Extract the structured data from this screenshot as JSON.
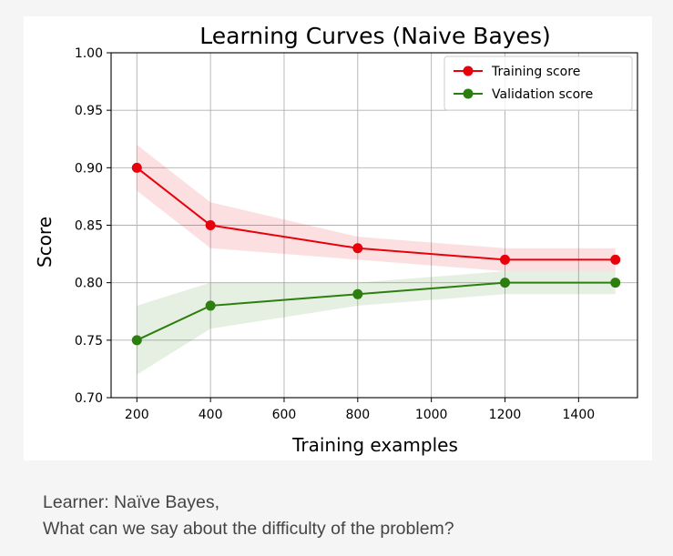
{
  "chart_data": {
    "type": "line",
    "title": "Learning Curves (Naive Bayes)",
    "xlabel": "Training examples",
    "ylabel": "Score",
    "x": [
      200,
      400,
      800,
      1200,
      1500
    ],
    "xticks": [
      200,
      400,
      600,
      800,
      1000,
      1200,
      1400
    ],
    "yticks": [
      "0.70",
      "0.75",
      "0.80",
      "0.85",
      "0.90",
      "0.95",
      "1.00"
    ],
    "xlim": [
      130,
      1560
    ],
    "ylim": [
      0.7,
      1.0
    ],
    "grid": true,
    "legend_position": "top-right",
    "series": [
      {
        "name": "Training score",
        "color": "#e8000b",
        "values": [
          0.9,
          0.85,
          0.83,
          0.82,
          0.82
        ],
        "band_lower": [
          0.88,
          0.83,
          0.82,
          0.81,
          0.81
        ],
        "band_upper": [
          0.92,
          0.87,
          0.84,
          0.83,
          0.83
        ]
      },
      {
        "name": "Validation score",
        "color": "#2c7f0e",
        "values": [
          0.75,
          0.78,
          0.79,
          0.8,
          0.8
        ],
        "band_lower": [
          0.72,
          0.76,
          0.78,
          0.79,
          0.79
        ],
        "band_upper": [
          0.78,
          0.8,
          0.8,
          0.81,
          0.81
        ]
      }
    ]
  },
  "question": {
    "line1": "Learner: Naïve Bayes,",
    "line2": "What can we say about the difficulty of the problem?"
  }
}
